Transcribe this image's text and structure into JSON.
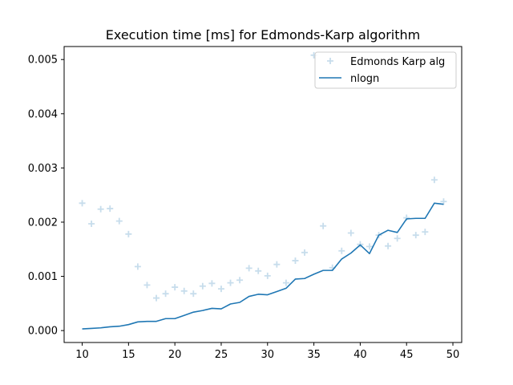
{
  "chart_data": {
    "type": "line",
    "title": "Execution time [ms] for Edmonds-Karp algorithm",
    "xlabel": "",
    "ylabel": "",
    "xlim": [
      8.05,
      50.95
    ],
    "ylim": [
      -0.00022,
      0.00524
    ],
    "xticks": [
      10,
      15,
      20,
      25,
      30,
      35,
      40,
      45,
      50
    ],
    "xtick_labels": [
      "10",
      "15",
      "20",
      "25",
      "30",
      "35",
      "40",
      "45",
      "50"
    ],
    "yticks": [
      0.0,
      0.001,
      0.002,
      0.003,
      0.004,
      0.005
    ],
    "ytick_labels": [
      "0.000",
      "0.001",
      "0.002",
      "0.003",
      "0.004",
      "0.005"
    ],
    "grid": false,
    "legend_position": "upper-right",
    "series": [
      {
        "name": "Edmonds Karp alg",
        "kind": "scatter",
        "marker": "+",
        "color": "#1f77b4",
        "alpha": 0.25,
        "x": [
          10,
          11,
          12,
          13,
          14,
          15,
          16,
          17,
          18,
          19,
          20,
          21,
          22,
          23,
          24,
          25,
          26,
          27,
          28,
          29,
          30,
          31,
          32,
          33,
          34,
          35,
          36,
          37,
          38,
          39,
          40,
          41,
          42,
          43,
          44,
          45,
          46,
          47,
          48,
          49
        ],
        "y": [
          0.00235,
          0.00197,
          0.00224,
          0.00225,
          0.00202,
          0.00178,
          0.00118,
          0.00084,
          0.0006,
          0.00068,
          0.0008,
          0.00073,
          0.00068,
          0.00082,
          0.00087,
          0.00077,
          0.00088,
          0.00093,
          0.00115,
          0.0011,
          0.00101,
          0.00122,
          0.00088,
          0.00129,
          0.00144,
          0.00508,
          0.00193,
          0.00116,
          0.00147,
          0.0018,
          0.00159,
          0.00155,
          0.00176,
          0.00156,
          0.0017,
          0.00208,
          0.00176,
          0.00182,
          0.00278,
          0.00238
        ]
      },
      {
        "name": "nlogn",
        "kind": "line",
        "color": "#1f77b4",
        "x": [
          10,
          11,
          12,
          13,
          14,
          15,
          16,
          17,
          18,
          19,
          20,
          21,
          22,
          23,
          24,
          25,
          26,
          27,
          28,
          29,
          30,
          31,
          32,
          33,
          34,
          35,
          36,
          37,
          38,
          39,
          40,
          41,
          42,
          43,
          44,
          45,
          46,
          47,
          48,
          49
        ],
        "y": [
          3e-05,
          4e-05,
          5e-05,
          7e-05,
          8e-05,
          0.00011,
          0.00016,
          0.00017,
          0.00017,
          0.00022,
          0.00022,
          0.00028,
          0.00034,
          0.00037,
          0.00041,
          0.0004,
          0.00049,
          0.00052,
          0.00063,
          0.00067,
          0.00066,
          0.00072,
          0.00078,
          0.00095,
          0.00096,
          0.00104,
          0.00111,
          0.00111,
          0.00132,
          0.00143,
          0.00158,
          0.00142,
          0.00176,
          0.00185,
          0.00181,
          0.00206,
          0.00207,
          0.00207,
          0.00235,
          0.00233
        ]
      }
    ]
  }
}
